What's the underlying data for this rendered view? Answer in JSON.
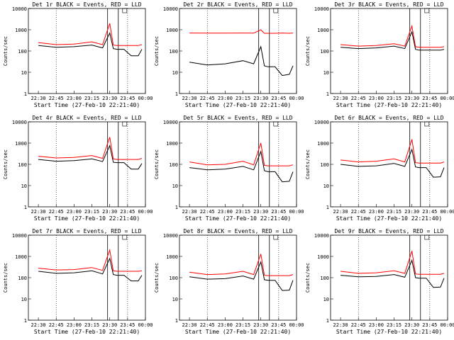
{
  "chart_data": [
    {
      "type": "line",
      "title": "Det 1r BLACK = Events, RED = LLD",
      "xlabel": "Start Time (27-Feb-10 22:21:40)",
      "ylabel": "Counts/sec",
      "yscale": "log",
      "ylim": [
        1,
        10000
      ],
      "x_ticks": [
        "22:30",
        "22:45",
        "23:00",
        "23:15",
        "23:30",
        "23:45",
        "00:00"
      ],
      "y_ticks": [
        "1",
        "10",
        "100",
        "1000",
        "10000"
      ],
      "series": [
        {
          "color": "#000000",
          "x": [
            22.5,
            22.75,
            23,
            23.25,
            23.4,
            23.5,
            23.55,
            23.6,
            23.7,
            23.8,
            23.9,
            23.95
          ],
          "values": [
            180,
            150,
            160,
            190,
            140,
            700,
            130,
            120,
            120,
            60,
            60,
            120
          ]
        },
        {
          "color": "#ff0000",
          "x": [
            22.5,
            22.75,
            23,
            23.25,
            23.4,
            23.5,
            23.55,
            23.6,
            23.7,
            23.8,
            23.9,
            23.95
          ],
          "values": [
            250,
            200,
            210,
            270,
            200,
            2000,
            190,
            180,
            180,
            180,
            180,
            200
          ]
        }
      ]
    },
    {
      "type": "line",
      "title": "Det 2r BLACK = Events, RED = LLD",
      "xlabel": "Start Time (27-Feb-10 22:21:40)",
      "ylabel": "Counts/sec",
      "yscale": "log",
      "ylim": [
        1,
        10000
      ],
      "x_ticks": [
        "22:30",
        "22:45",
        "23:00",
        "23:15",
        "23:30",
        "23:45",
        "00:00"
      ],
      "y_ticks": [
        "1",
        "10",
        "100",
        "1000",
        "10000"
      ],
      "series": [
        {
          "color": "#000000",
          "x": [
            22.5,
            22.75,
            23,
            23.25,
            23.4,
            23.5,
            23.55,
            23.6,
            23.7,
            23.8,
            23.9,
            23.95
          ],
          "values": [
            30,
            22,
            25,
            35,
            25,
            160,
            20,
            18,
            18,
            7,
            8,
            20
          ]
        },
        {
          "color": "#ff0000",
          "x": [
            22.5,
            22.75,
            23,
            23.25,
            23.4,
            23.5,
            23.55,
            23.6,
            23.7,
            23.8,
            23.9,
            23.95
          ],
          "values": [
            700,
            690,
            690,
            700,
            690,
            1000,
            680,
            680,
            680,
            700,
            680,
            700
          ]
        }
      ]
    },
    {
      "type": "line",
      "title": "Det 3r BLACK = Events, RED = LLD",
      "xlabel": "Start Time (27-Feb-10 22:21:40)",
      "ylabel": "Counts/sec",
      "yscale": "log",
      "ylim": [
        1,
        10000
      ],
      "x_ticks": [
        "22:30",
        "22:45",
        "23:00",
        "23:15",
        "23:30",
        "23:45",
        "00:00"
      ],
      "y_ticks": [
        "1",
        "10",
        "100",
        "1000",
        "10000"
      ],
      "series": [
        {
          "color": "#000000",
          "x": [
            22.5,
            22.75,
            23,
            23.25,
            23.4,
            23.5,
            23.55,
            23.6,
            23.7,
            23.8,
            23.9,
            23.95
          ],
          "values": [
            150,
            130,
            140,
            170,
            130,
            800,
            120,
            110,
            110,
            110,
            110,
            120
          ]
        },
        {
          "color": "#ff0000",
          "x": [
            22.5,
            22.75,
            23,
            23.25,
            23.4,
            23.5,
            23.55,
            23.6,
            23.7,
            23.8,
            23.9,
            23.95
          ],
          "values": [
            200,
            170,
            180,
            220,
            170,
            1500,
            160,
            150,
            150,
            150,
            150,
            160
          ]
        }
      ]
    },
    {
      "type": "line",
      "title": "Det 4r BLACK = Events, RED = LLD",
      "xlabel": "Start Time (27-Feb-10 22:21:40)",
      "ylabel": "Counts/sec",
      "yscale": "log",
      "ylim": [
        1,
        10000
      ],
      "x_ticks": [
        "22:30",
        "22:45",
        "23:00",
        "23:15",
        "23:30",
        "23:45",
        "00:00"
      ],
      "y_ticks": [
        "1",
        "10",
        "100",
        "1000",
        "10000"
      ],
      "series": [
        {
          "color": "#000000",
          "x": [
            22.5,
            22.75,
            23,
            23.25,
            23.4,
            23.5,
            23.55,
            23.6,
            23.7,
            23.8,
            23.9,
            23.95
          ],
          "values": [
            170,
            140,
            150,
            180,
            135,
            750,
            125,
            120,
            120,
            60,
            60,
            110
          ]
        },
        {
          "color": "#ff0000",
          "x": [
            22.5,
            22.75,
            23,
            23.25,
            23.4,
            23.5,
            23.55,
            23.6,
            23.7,
            23.8,
            23.9,
            23.95
          ],
          "values": [
            240,
            200,
            210,
            260,
            190,
            1900,
            180,
            170,
            170,
            170,
            170,
            190
          ]
        }
      ]
    },
    {
      "type": "line",
      "title": "Det 5r BLACK = Events, RED = LLD",
      "xlabel": "Start Time (27-Feb-10 22:21:40)",
      "ylabel": "Counts/sec",
      "yscale": "log",
      "ylim": [
        1,
        10000
      ],
      "x_ticks": [
        "22:30",
        "22:45",
        "23:00",
        "23:15",
        "23:30",
        "23:45",
        "00:00"
      ],
      "y_ticks": [
        "1",
        "10",
        "100",
        "1000",
        "10000"
      ],
      "series": [
        {
          "color": "#000000",
          "x": [
            22.5,
            22.75,
            23,
            23.25,
            23.4,
            23.5,
            23.55,
            23.6,
            23.7,
            23.8,
            23.9,
            23.95
          ],
          "values": [
            70,
            55,
            60,
            80,
            55,
            400,
            50,
            45,
            45,
            15,
            16,
            45
          ]
        },
        {
          "color": "#ff0000",
          "x": [
            22.5,
            22.75,
            23,
            23.25,
            23.4,
            23.5,
            23.55,
            23.6,
            23.7,
            23.8,
            23.9,
            23.95
          ],
          "values": [
            130,
            95,
            100,
            140,
            95,
            1000,
            90,
            85,
            85,
            85,
            85,
            95
          ]
        }
      ]
    },
    {
      "type": "line",
      "title": "Det 6r BLACK = Events, RED = LLD",
      "xlabel": "Start Time (27-Feb-10 22:21:40)",
      "ylabel": "Counts/sec",
      "yscale": "log",
      "ylim": [
        1,
        10000
      ],
      "x_ticks": [
        "22:30",
        "22:45",
        "23:00",
        "23:15",
        "23:30",
        "23:45",
        "00:00"
      ],
      "y_ticks": [
        "1",
        "10",
        "100",
        "1000",
        "10000"
      ],
      "series": [
        {
          "color": "#000000",
          "x": [
            22.5,
            22.75,
            23,
            23.25,
            23.4,
            23.5,
            23.55,
            23.6,
            23.7,
            23.8,
            23.9,
            23.95
          ],
          "values": [
            100,
            80,
            85,
            110,
            80,
            500,
            75,
            70,
            70,
            25,
            26,
            70
          ]
        },
        {
          "color": "#ff0000",
          "x": [
            22.5,
            22.75,
            23,
            23.25,
            23.4,
            23.5,
            23.55,
            23.6,
            23.7,
            23.8,
            23.9,
            23.95
          ],
          "values": [
            160,
            130,
            140,
            180,
            130,
            1500,
            120,
            115,
            115,
            115,
            115,
            130
          ]
        }
      ]
    },
    {
      "type": "line",
      "title": "Det 7r BLACK = Events, RED = LLD",
      "xlabel": "Start Time (27-Feb-10 22:21:40)",
      "ylabel": "Counts/sec",
      "yscale": "log",
      "ylim": [
        1,
        10000
      ],
      "x_ticks": [
        "22:30",
        "22:45",
        "23:00",
        "23:15",
        "23:30",
        "23:45",
        "00:00"
      ],
      "y_ticks": [
        "1",
        "10",
        "100",
        "1000",
        "10000"
      ],
      "series": [
        {
          "color": "#000000",
          "x": [
            22.5,
            22.75,
            23,
            23.25,
            23.4,
            23.5,
            23.55,
            23.6,
            23.7,
            23.8,
            23.9,
            23.95
          ],
          "values": [
            200,
            160,
            170,
            210,
            150,
            800,
            140,
            130,
            130,
            70,
            70,
            130
          ]
        },
        {
          "color": "#ff0000",
          "x": [
            22.5,
            22.75,
            23,
            23.25,
            23.4,
            23.5,
            23.55,
            23.6,
            23.7,
            23.8,
            23.9,
            23.95
          ],
          "values": [
            280,
            230,
            240,
            300,
            220,
            2000,
            210,
            200,
            200,
            200,
            200,
            210
          ]
        }
      ]
    },
    {
      "type": "line",
      "title": "Det 8r BLACK = Events, RED = LLD",
      "xlabel": "Start Time (27-Feb-10 22:21:40)",
      "ylabel": "Counts/sec",
      "yscale": "log",
      "ylim": [
        1,
        10000
      ],
      "x_ticks": [
        "22:30",
        "22:45",
        "23:00",
        "23:15",
        "23:30",
        "23:45",
        "00:00"
      ],
      "y_ticks": [
        "1",
        "10",
        "100",
        "1000",
        "10000"
      ],
      "series": [
        {
          "color": "#000000",
          "x": [
            22.5,
            22.75,
            23,
            23.25,
            23.4,
            23.5,
            23.55,
            23.6,
            23.7,
            23.8,
            23.9,
            23.95
          ],
          "values": [
            110,
            85,
            90,
            120,
            85,
            550,
            80,
            75,
            75,
            25,
            26,
            75
          ]
        },
        {
          "color": "#ff0000",
          "x": [
            22.5,
            22.75,
            23,
            23.25,
            23.4,
            23.5,
            23.55,
            23.6,
            23.7,
            23.8,
            23.9,
            23.95
          ],
          "values": [
            180,
            140,
            150,
            200,
            140,
            1300,
            130,
            125,
            125,
            125,
            125,
            140
          ]
        }
      ]
    },
    {
      "type": "line",
      "title": "Det 9r BLACK = Events, RED = LLD",
      "xlabel": "Start Time (27-Feb-10 22:21:40)",
      "ylabel": "Counts/sec",
      "yscale": "log",
      "ylim": [
        1,
        10000
      ],
      "x_ticks": [
        "22:30",
        "22:45",
        "23:00",
        "23:15",
        "23:30",
        "23:45",
        "00:00"
      ],
      "y_ticks": [
        "1",
        "10",
        "100",
        "1000",
        "10000"
      ],
      "series": [
        {
          "color": "#000000",
          "x": [
            22.5,
            22.75,
            23,
            23.25,
            23.4,
            23.5,
            23.55,
            23.6,
            23.7,
            23.8,
            23.9,
            23.95
          ],
          "values": [
            130,
            110,
            115,
            140,
            105,
            650,
            100,
            95,
            95,
            35,
            36,
            95
          ]
        },
        {
          "color": "#ff0000",
          "x": [
            22.5,
            22.75,
            23,
            23.25,
            23.4,
            23.5,
            23.55,
            23.6,
            23.7,
            23.8,
            23.9,
            23.95
          ],
          "values": [
            200,
            160,
            170,
            210,
            160,
            1800,
            150,
            145,
            145,
            145,
            145,
            160
          ]
        }
      ]
    }
  ]
}
